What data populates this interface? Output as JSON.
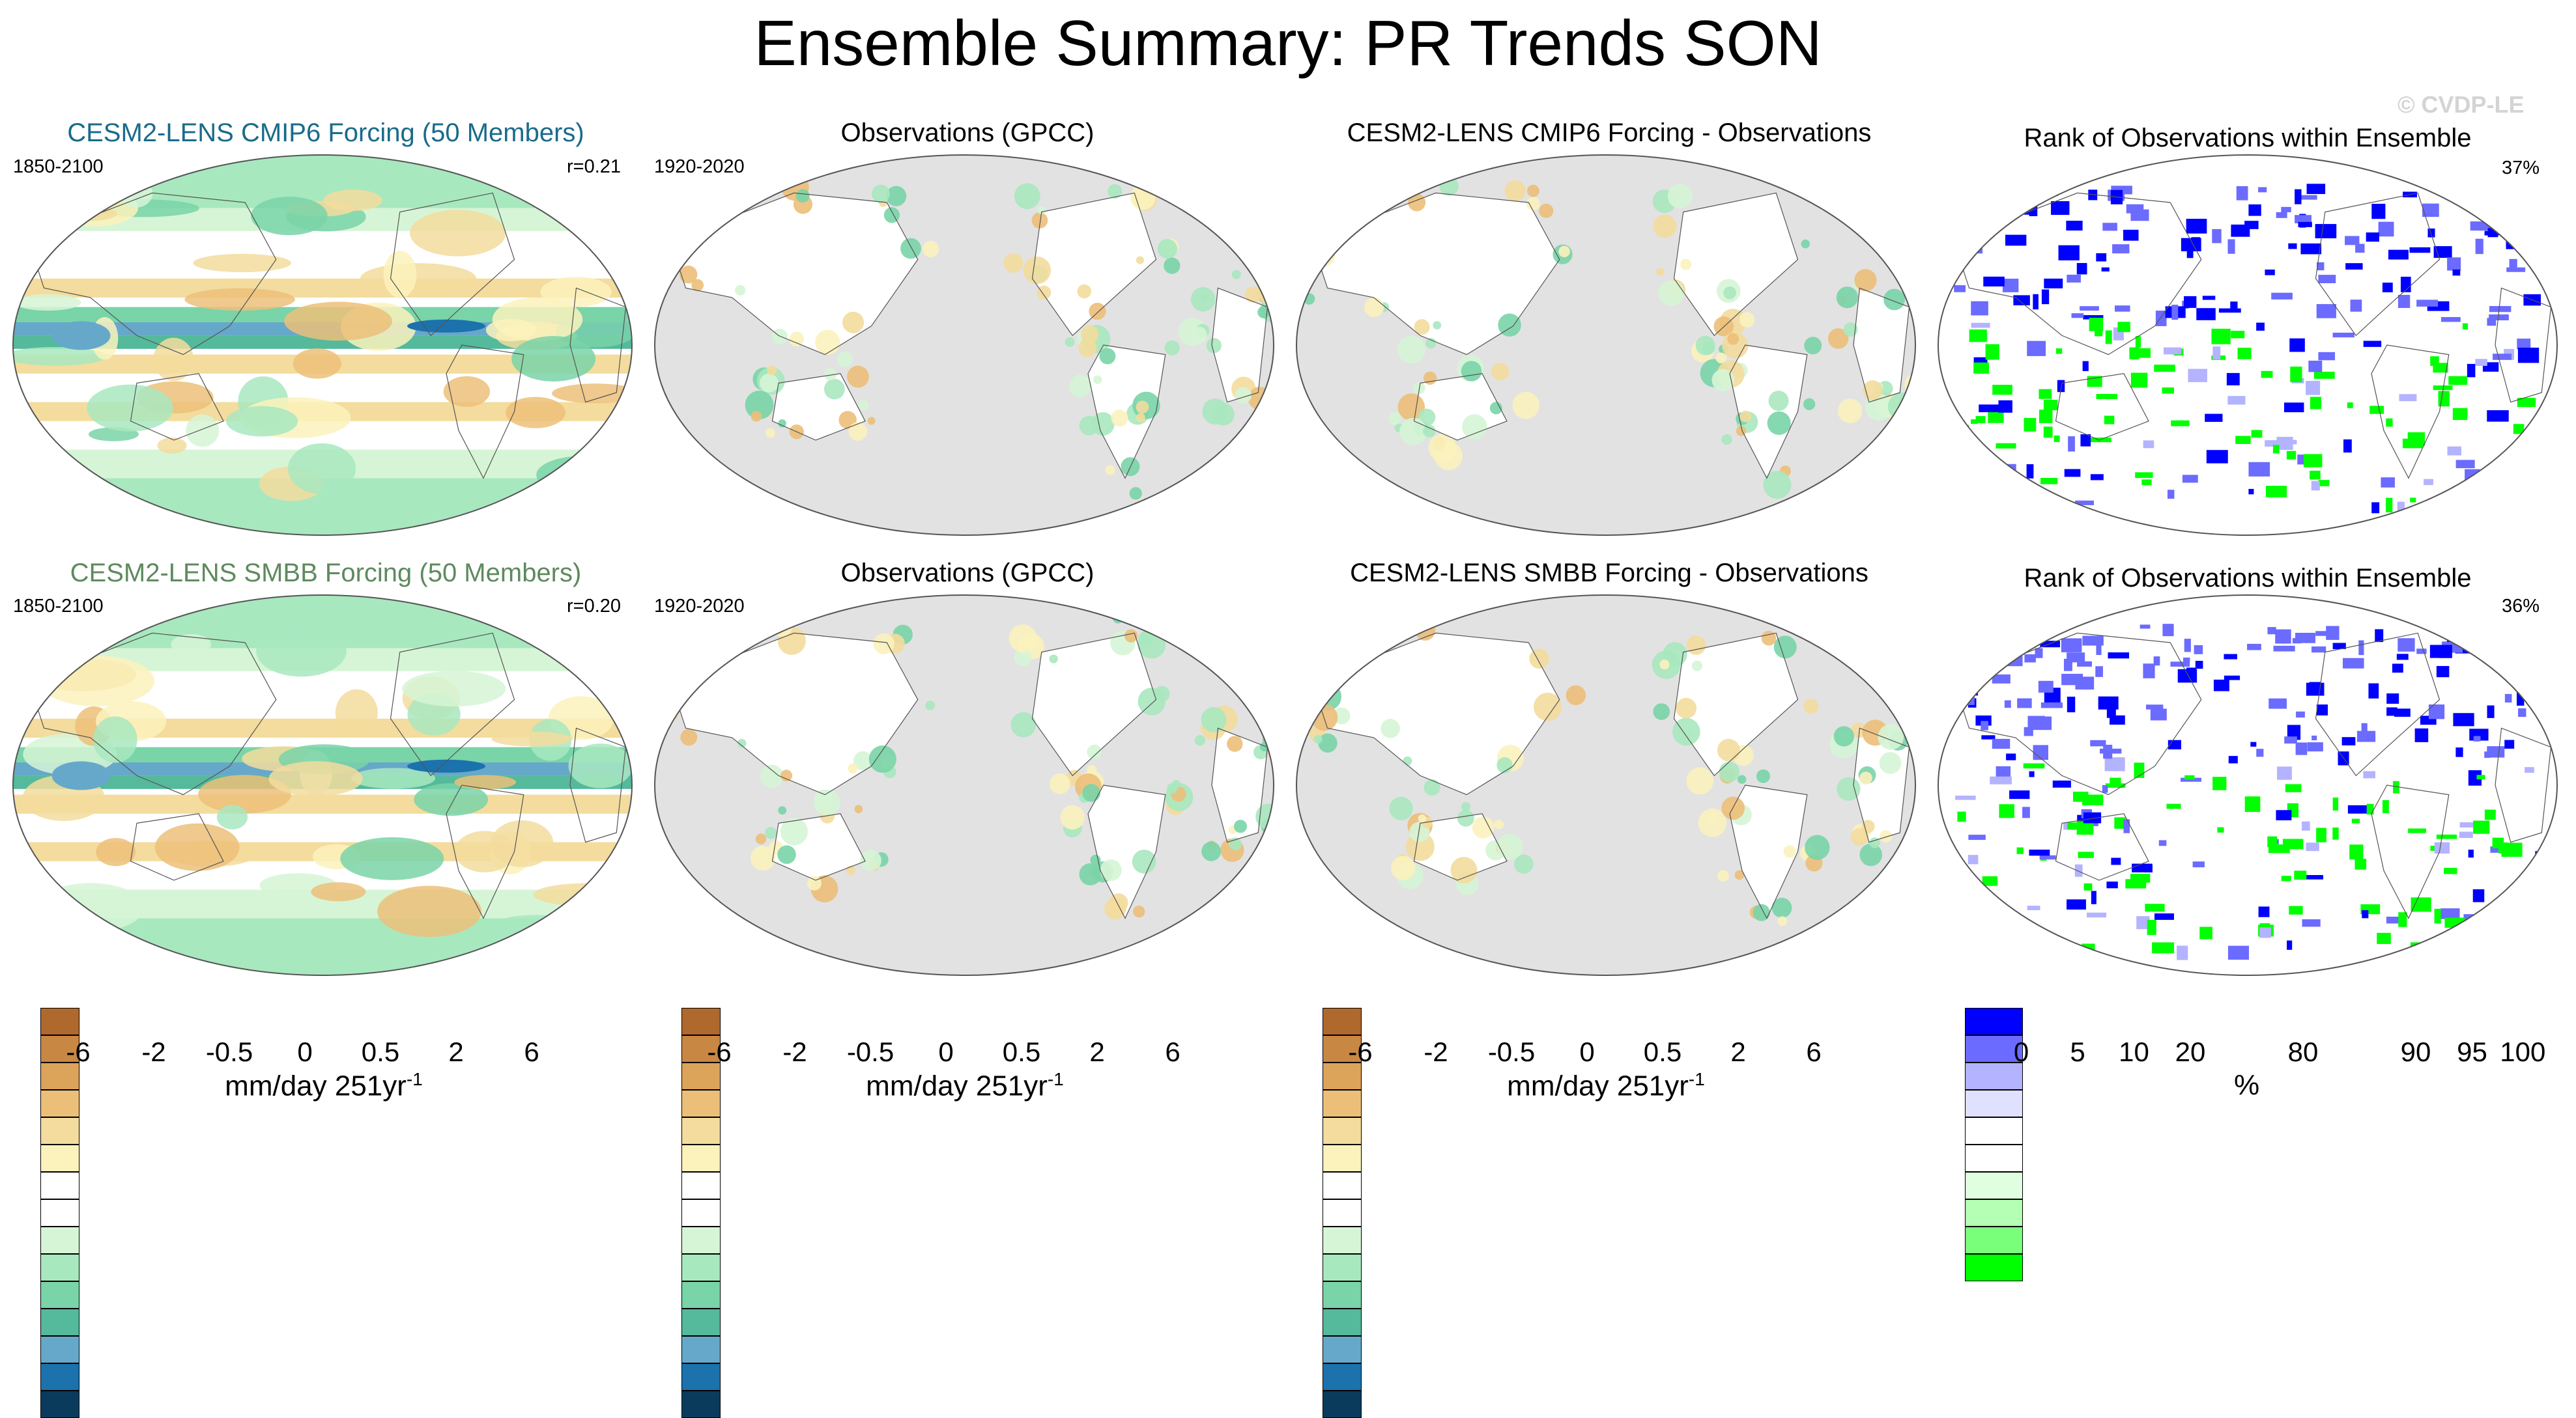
{
  "title": "Ensemble Summary: PR Trends SON",
  "watermark": "© CVDP-LE",
  "rows": [
    {
      "model_title": "CESM2-LENS CMIP6 Forcing (50 Members)",
      "model_title_color": "#1a6b8a",
      "model_period": "1850-2100",
      "model_corr": "r=0.21",
      "obs_title": "Observations (GPCC)",
      "obs_period": "1920-2020",
      "diff_title": "CESM2-LENS CMIP6 Forcing - Observations",
      "rank_title": "Rank of Observations within Ensemble",
      "rank_pct": "37%"
    },
    {
      "model_title": "CESM2-LENS SMBB Forcing (50 Members)",
      "model_title_color": "#5e8a5e",
      "model_period": "1850-2100",
      "model_corr": "r=0.20",
      "obs_title": "Observations (GPCC)",
      "obs_period": "1920-2020",
      "diff_title": "CESM2-LENS SMBB Forcing - Observations",
      "rank_title": "Rank of Observations within Ensemble",
      "rank_pct": "36%"
    }
  ],
  "colorbars": {
    "trend": {
      "colors": [
        "#b0692c",
        "#c98744",
        "#dca35b",
        "#ecbf79",
        "#f3dc9d",
        "#fbf2bc",
        "#ffffff",
        "#ffffff",
        "#d6f5d6",
        "#a8e8bf",
        "#79d4a8",
        "#55b99c",
        "#66a8c9",
        "#1b72ad",
        "#0a3b5c"
      ],
      "ticks": [
        "-6",
        "-2",
        "-0.5",
        "0",
        "0.5",
        "2",
        "6"
      ],
      "unit": "mm/day 251yr",
      "unit_sup": "-1"
    },
    "rank": {
      "colors": [
        "#0000ff",
        "#6b6bff",
        "#b3b3ff",
        "#e0e0ff",
        "#ffffff",
        "#ffffff",
        "#e0ffe0",
        "#b3ffb3",
        "#7aff7a",
        "#00ff00"
      ],
      "ticks": [
        "0",
        "5",
        "10",
        "20",
        "80",
        "90",
        "95",
        "100"
      ],
      "unit": "%"
    }
  },
  "chart_data": [
    {
      "type": "heatmap",
      "title": "CESM2-LENS CMIP6 Forcing (50 Members)",
      "subtitle": "1850-2100",
      "annotation": "r=0.21",
      "variable": "PR trend",
      "units": "mm/day 251yr-1",
      "levels": [
        -6,
        -2,
        -0.5,
        0,
        0.5,
        2,
        6
      ]
    },
    {
      "type": "heatmap",
      "title": "Observations (GPCC)",
      "subtitle": "1920-2020",
      "variable": "PR trend",
      "units": "mm/day 251yr-1",
      "levels": [
        -6,
        -2,
        -0.5,
        0,
        0.5,
        2,
        6
      ]
    },
    {
      "type": "heatmap",
      "title": "CESM2-LENS CMIP6 Forcing - Observations",
      "variable": "PR trend difference",
      "units": "mm/day 251yr-1",
      "levels": [
        -6,
        -2,
        -0.5,
        0,
        0.5,
        2,
        6
      ]
    },
    {
      "type": "heatmap",
      "title": "Rank of Observations within Ensemble",
      "annotation": "37%",
      "units": "%",
      "levels": [
        0,
        5,
        10,
        20,
        80,
        90,
        95,
        100
      ]
    },
    {
      "type": "heatmap",
      "title": "CESM2-LENS SMBB Forcing (50 Members)",
      "subtitle": "1850-2100",
      "annotation": "r=0.20",
      "variable": "PR trend",
      "units": "mm/day 251yr-1",
      "levels": [
        -6,
        -2,
        -0.5,
        0,
        0.5,
        2,
        6
      ]
    },
    {
      "type": "heatmap",
      "title": "Observations (GPCC)",
      "subtitle": "1920-2020",
      "variable": "PR trend",
      "units": "mm/day 251yr-1",
      "levels": [
        -6,
        -2,
        -0.5,
        0,
        0.5,
        2,
        6
      ]
    },
    {
      "type": "heatmap",
      "title": "CESM2-LENS SMBB Forcing - Observations",
      "variable": "PR trend difference",
      "units": "mm/day 251yr-1",
      "levels": [
        -6,
        -2,
        -0.5,
        0,
        0.5,
        2,
        6
      ]
    },
    {
      "type": "heatmap",
      "title": "Rank of Observations within Ensemble",
      "annotation": "36%",
      "units": "%",
      "levels": [
        0,
        5,
        10,
        20,
        80,
        90,
        95,
        100
      ]
    }
  ]
}
